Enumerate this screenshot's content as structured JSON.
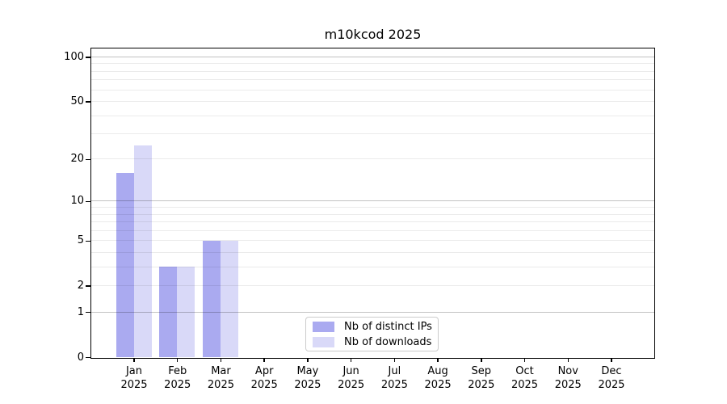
{
  "chart_data": {
    "type": "bar",
    "title": "m10kcod 2025",
    "categories": [
      "Jan",
      "Feb",
      "Mar",
      "Apr",
      "May",
      "Jun",
      "Jul",
      "Aug",
      "Sep",
      "Oct",
      "Nov",
      "Dec"
    ],
    "year_label": "2025",
    "series": [
      {
        "name": "Nb of distinct IPs",
        "color": "#aaaaf0",
        "values": [
          16,
          3,
          5,
          0,
          0,
          0,
          0,
          0,
          0,
          0,
          0,
          0
        ]
      },
      {
        "name": "Nb of downloads",
        "color": "#d9d9f8",
        "values": [
          25,
          3,
          5,
          0,
          0,
          0,
          0,
          0,
          0,
          0,
          0,
          0
        ]
      }
    ],
    "yscale": "log1p",
    "ylim": [
      0,
      114
    ],
    "yticks": [
      0,
      1,
      2,
      5,
      10,
      20,
      50,
      100
    ],
    "major_gridlines": [
      1,
      10,
      100
    ],
    "minor_gridlines": [
      2,
      3,
      4,
      5,
      6,
      7,
      8,
      9,
      20,
      30,
      40,
      50,
      60,
      70,
      80,
      90
    ],
    "grid": "horizontal",
    "legend_position": "lower center",
    "colors": {
      "grid_major": "rgba(0,0,0,0.24)",
      "grid_minor": "rgba(0,0,0,0.08)",
      "axis": "#000000",
      "background": "#ffffff",
      "text": "#000000"
    }
  }
}
